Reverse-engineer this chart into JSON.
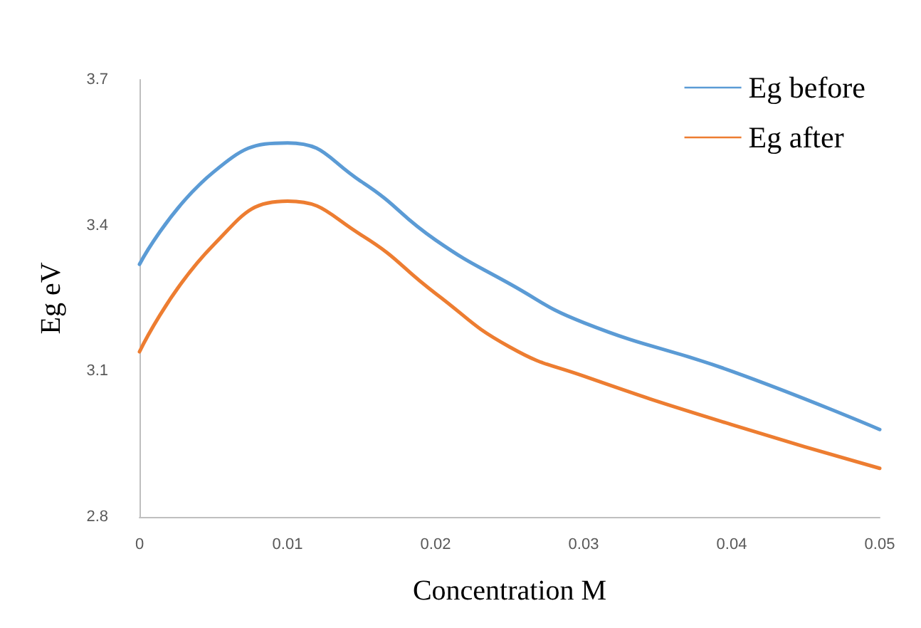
{
  "chart_data": {
    "type": "line",
    "xlabel": "Concentration M",
    "ylabel": "Eg eV",
    "x": [
      0,
      0.005,
      0.01,
      0.015,
      0.02,
      0.025,
      0.03,
      0.04,
      0.05
    ],
    "series": [
      {
        "name": "Eg before",
        "color": "#5b9bd5",
        "values": [
          3.32,
          3.51,
          3.57,
          3.49,
          3.37,
          3.28,
          3.2,
          3.1,
          2.98
        ]
      },
      {
        "name": "Eg after",
        "color": "#ed7d31",
        "values": [
          3.14,
          3.36,
          3.45,
          3.38,
          3.26,
          3.15,
          3.09,
          2.99,
          2.9
        ]
      }
    ],
    "xlim": [
      0,
      0.05
    ],
    "xticks": [
      0,
      0.01,
      0.02,
      0.03,
      0.04,
      0.05
    ],
    "ylim": [
      2.8,
      3.7
    ],
    "yticks": [
      2.8,
      3.1,
      3.4,
      3.7
    ],
    "grid": false,
    "legend": "top right",
    "marker": "none",
    "line_style": "solid"
  }
}
